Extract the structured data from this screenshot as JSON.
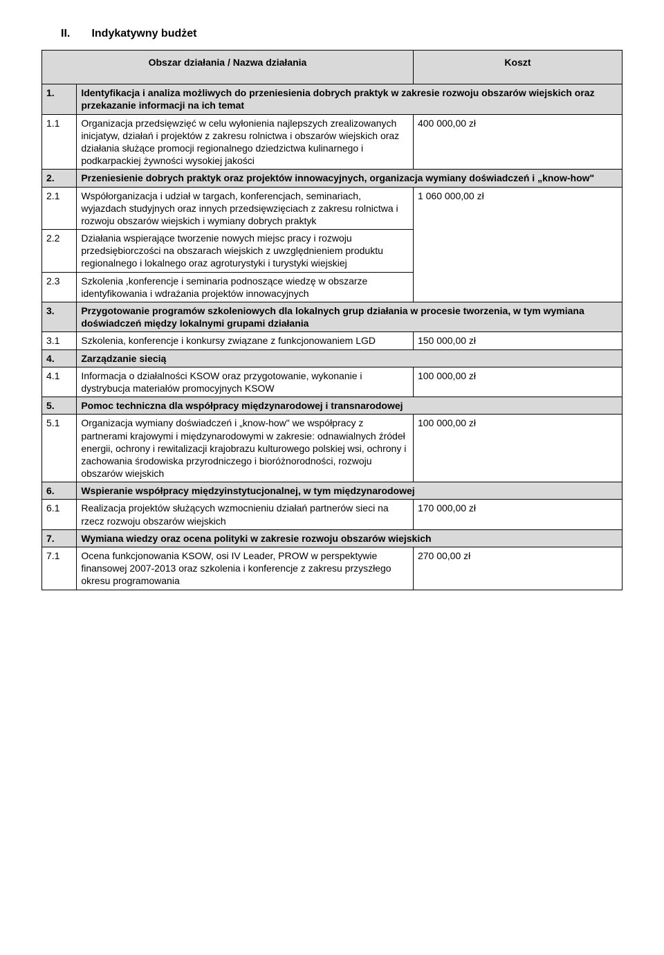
{
  "heading_num": "II.",
  "heading_text": "Indykatywny budżet",
  "header": {
    "c1": "Obszar działania / Nazwa działania",
    "c2": "Koszt"
  },
  "rows": [
    {
      "type": "section",
      "idx": "1.",
      "text": "Identyfikacja i analiza możliwych do przeniesienia dobrych praktyk w zakresie rozwoju obszarów wiejskich oraz przekazanie informacji na ich temat"
    },
    {
      "type": "item",
      "idx": "1.1",
      "text": "Organizacja przedsięwzięć w celu wyłonienia najlepszych zrealizowanych inicjatyw, działań i projektów z zakresu rolnictwa i obszarów wiejskich oraz działania służące promocji regionalnego dziedzictwa kulinarnego i podkarpackiej żywności wysokiej jakości",
      "cost": "400 000,00 zł"
    },
    {
      "type": "section",
      "idx": "2.",
      "text": "Przeniesienie dobrych praktyk oraz projektów innowacyjnych, organizacja wymiany doświadczeń i „know-how\""
    },
    {
      "type": "group-first",
      "idx": "2.1",
      "text": "Współorganizacja i udział w targach, konferencjach, seminariach, wyjazdach studyjnych oraz innych przedsięwzięciach z zakresu rolnictwa i rozwoju obszarów wiejskich i wymiany dobrych praktyk",
      "cost": "1 060 000,00 zł",
      "rowspan": 3
    },
    {
      "type": "group-cont",
      "idx": "2.2",
      "text": "Działania wspierające tworzenie nowych miejsc pracy i rozwoju przedsiębiorczości na obszarach wiejskich z uwzględnieniem produktu regionalnego i lokalnego oraz agroturystyki i turystyki wiejskiej"
    },
    {
      "type": "group-cont",
      "idx": "2.3",
      "text": "Szkolenia ,konferencje i seminaria podnoszące wiedzę w obszarze identyfikowania i wdrażania projektów innowacyjnych"
    },
    {
      "type": "section",
      "idx": "3.",
      "text": "Przygotowanie programów szkoleniowych dla lokalnych grup działania w procesie tworzenia, w tym wymiana doświadczeń między lokalnymi grupami działania"
    },
    {
      "type": "item",
      "idx": "3.1",
      "text": "Szkolenia, konferencje i konkursy związane z funkcjonowaniem LGD",
      "cost": "150 000,00 zł"
    },
    {
      "type": "section",
      "idx": "4.",
      "text": "Zarządzanie siecią"
    },
    {
      "type": "item",
      "idx": "4.1",
      "text": "Informacja o działalności KSOW oraz przygotowanie, wykonanie i dystrybucja materiałów promocyjnych KSOW",
      "cost": "100 000,00 zł"
    },
    {
      "type": "section",
      "idx": "5.",
      "text": "Pomoc techniczna dla współpracy międzynarodowej i transnarodowej"
    },
    {
      "type": "item",
      "idx": "5.1",
      "text": "Organizacja wymiany doświadczeń i „know-how\" we współpracy z partnerami krajowymi i międzynarodowymi w zakresie: odnawialnych źródeł energii, ochrony i rewitalizacji krajobrazu kulturowego polskiej wsi, ochrony i zachowania środowiska przyrodniczego i bioróżnorodności, rozwoju obszarów wiejskich",
      "cost": "100 000,00 zł"
    },
    {
      "type": "section",
      "idx": "6.",
      "text": "Wspieranie współpracy międzyinstytucjonalnej, w tym międzynarodowej"
    },
    {
      "type": "item",
      "idx": "6.1",
      "text": "Realizacja projektów służących wzmocnieniu działań partnerów sieci na rzecz rozwoju obszarów wiejskich",
      "cost": "170 000,00 zł"
    },
    {
      "type": "section",
      "idx": "7.",
      "text": "Wymiana wiedzy oraz ocena polityki w zakresie rozwoju obszarów wiejskich"
    },
    {
      "type": "item",
      "idx": "7.1",
      "text": "Ocena funkcjonowania KSOW, osi IV Leader, PROW w perspektywie finansowej 2007-2013 oraz szkolenia i konferencje z zakresu przyszłego okresu programowania",
      "cost": "270 00,00 zł"
    }
  ]
}
